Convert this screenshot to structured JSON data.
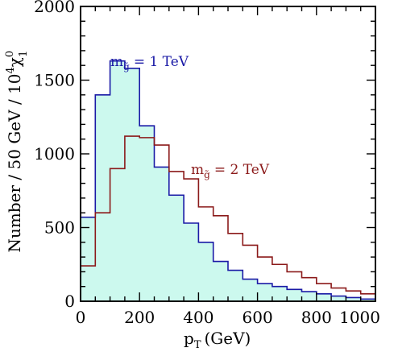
{
  "chart_data": {
    "type": "area",
    "xlabel_main": "p",
    "xlabel_sub": "T",
    "xlabel_unit": "(GeV)",
    "ylabel_text": "Number / 50 GeV / 10",
    "ylabel_sup": "4",
    "ylabel_chi": "χ",
    "ylabel_chi_sup": "0",
    "ylabel_chi_sub": "1",
    "xlim": [
      0,
      1000
    ],
    "ylim": [
      0,
      2000
    ],
    "x_ticks": [
      "0",
      "200",
      "400",
      "600",
      "800",
      "1000"
    ],
    "y_ticks": [
      "0",
      "500",
      "1000",
      "1500",
      "2000"
    ],
    "bin_width": 50,
    "series": [
      {
        "label_main": "m",
        "label_sub": "g̃",
        "label_value": "= 1 TeV",
        "color": "#1a1aa6",
        "fill": "#ccf9ee",
        "values": [
          570,
          1400,
          1630,
          1580,
          1190,
          910,
          720,
          530,
          400,
          270,
          210,
          150,
          120,
          100,
          80,
          65,
          50,
          35,
          25,
          15
        ]
      },
      {
        "label_main": "m",
        "label_sub": "g̃",
        "label_value": "= 2 TeV",
        "color": "#8b1a1a",
        "fill": "none",
        "values": [
          240,
          600,
          900,
          1120,
          1110,
          1060,
          880,
          830,
          640,
          580,
          460,
          380,
          300,
          250,
          200,
          160,
          120,
          90,
          70,
          50
        ]
      }
    ]
  }
}
